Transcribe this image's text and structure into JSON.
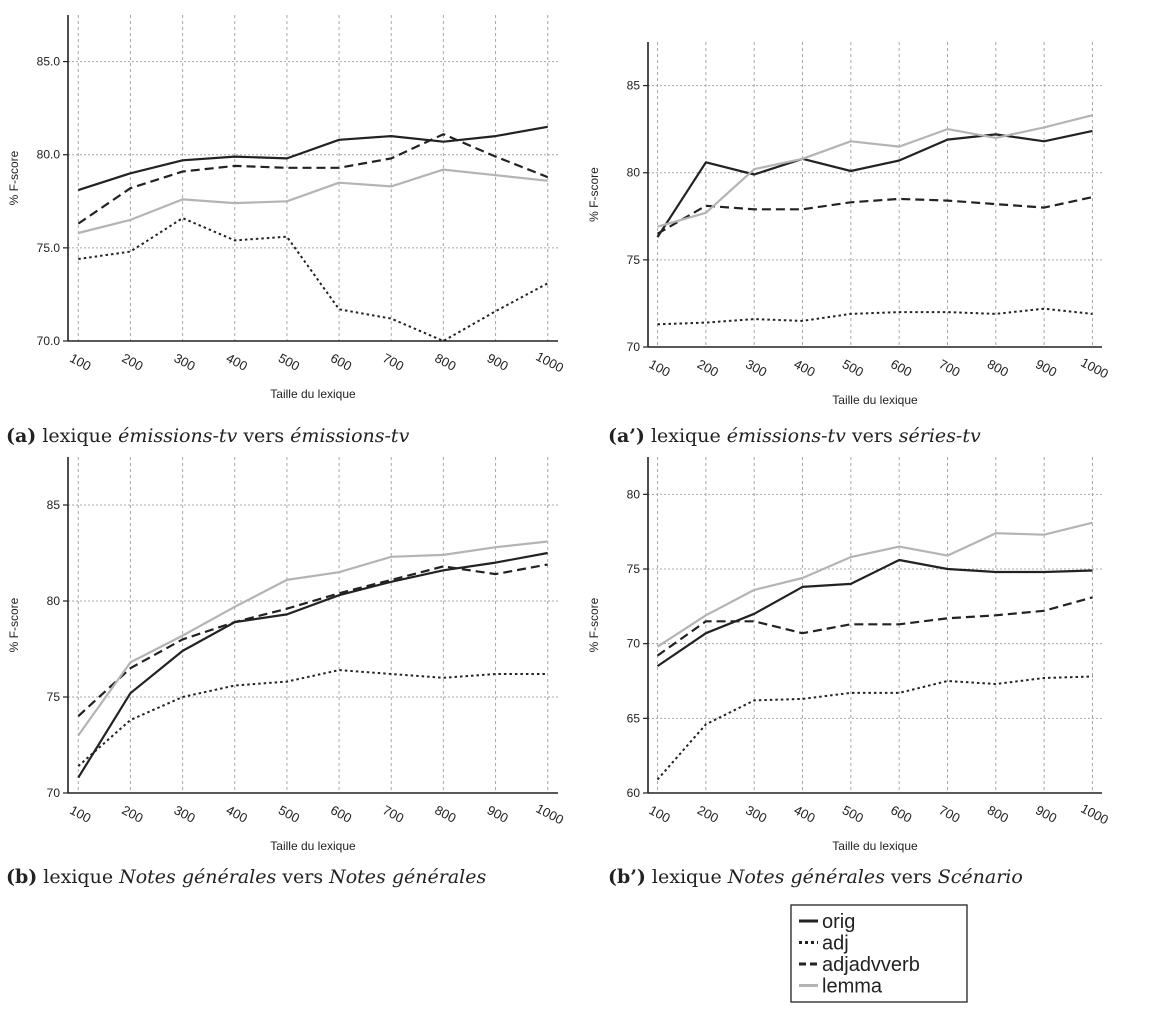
{
  "legend": {
    "entries": [
      {
        "label": "orig",
        "color": "#222222",
        "dash": "solid"
      },
      {
        "label": "adj",
        "color": "#222222",
        "dash": "dotted"
      },
      {
        "label": "adjadvverb",
        "color": "#222222",
        "dash": "dashed"
      },
      {
        "label": "lemma",
        "color": "#b4b4b4",
        "dash": "solid"
      }
    ]
  },
  "chart_data": [
    {
      "type": "line",
      "id": "a",
      "caption": {
        "label": "(a)",
        "parts": [
          {
            "t": " lexique ",
            "it": false
          },
          {
            "t": "émissions-tv",
            "it": true
          },
          {
            "t": " vers ",
            "it": false
          },
          {
            "t": "émissions-tv",
            "it": true
          }
        ]
      },
      "xlabel": "Taille du lexique",
      "ylabel": "% F-score",
      "categories": [
        "100",
        "200",
        "300",
        "400",
        "500",
        "600",
        "700",
        "800",
        "900",
        "1000"
      ],
      "yticks": [
        "70.0",
        "75.0",
        "80.0",
        "85.0"
      ],
      "ylim": [
        70,
        87.5
      ],
      "series": [
        {
          "name": "orig",
          "values": [
            78.1,
            79.0,
            79.7,
            79.9,
            79.8,
            80.8,
            81.0,
            80.7,
            81.0,
            81.5
          ]
        },
        {
          "name": "adj",
          "values": [
            74.4,
            74.8,
            76.6,
            75.4,
            75.6,
            71.7,
            71.2,
            70.0,
            71.6,
            73.1
          ]
        },
        {
          "name": "adjadvverb",
          "values": [
            76.3,
            78.2,
            79.1,
            79.4,
            79.3,
            79.3,
            79.8,
            81.1,
            79.9,
            78.8
          ]
        },
        {
          "name": "lemma",
          "values": [
            75.8,
            76.5,
            77.6,
            77.4,
            77.5,
            78.5,
            78.3,
            79.2,
            78.9,
            78.6
          ]
        }
      ]
    },
    {
      "type": "line",
      "id": "a2",
      "caption": {
        "label": "(a’)",
        "parts": [
          {
            "t": " lexique ",
            "it": false
          },
          {
            "t": "émissions-tv",
            "it": true
          },
          {
            "t": " vers ",
            "it": false
          },
          {
            "t": "séries-tv",
            "it": true
          }
        ]
      },
      "xlabel": "Taille du lexique",
      "ylabel": "% F-score",
      "categories": [
        "100",
        "200",
        "300",
        "400",
        "500",
        "600",
        "700",
        "800",
        "900",
        "1000"
      ],
      "yticks": [
        "70",
        "75",
        "80",
        "85"
      ],
      "ylim": [
        70,
        87.5
      ],
      "series": [
        {
          "name": "orig",
          "values": [
            76.3,
            80.6,
            79.9,
            80.8,
            80.1,
            80.7,
            81.9,
            82.2,
            81.8,
            82.4
          ]
        },
        {
          "name": "adj",
          "values": [
            71.3,
            71.4,
            71.6,
            71.5,
            71.9,
            72.0,
            72.0,
            71.9,
            72.2,
            71.9
          ]
        },
        {
          "name": "adjadvverb",
          "values": [
            76.5,
            78.1,
            77.9,
            77.9,
            78.3,
            78.5,
            78.4,
            78.2,
            78.0,
            78.6
          ]
        },
        {
          "name": "lemma",
          "values": [
            76.9,
            77.7,
            80.2,
            80.8,
            81.8,
            81.5,
            82.5,
            82.0,
            82.6,
            83.3
          ]
        }
      ]
    },
    {
      "type": "line",
      "id": "b",
      "caption": {
        "label": "(b)",
        "parts": [
          {
            "t": " lexique ",
            "it": false
          },
          {
            "t": "Notes générales",
            "it": true
          },
          {
            "t": " vers ",
            "it": false
          },
          {
            "t": "Notes générales",
            "it": true
          }
        ]
      },
      "xlabel": "Taille du lexique",
      "ylabel": "% F-score",
      "categories": [
        "100",
        "200",
        "300",
        "400",
        "500",
        "600",
        "700",
        "800",
        "900",
        "1000"
      ],
      "yticks": [
        "70",
        "75",
        "80",
        "85"
      ],
      "ylim": [
        70,
        87.5
      ],
      "series": [
        {
          "name": "orig",
          "values": [
            70.8,
            75.2,
            77.4,
            78.9,
            79.3,
            80.3,
            81.0,
            81.6,
            82.0,
            82.5
          ]
        },
        {
          "name": "adj",
          "values": [
            71.4,
            73.8,
            75.0,
            75.6,
            75.8,
            76.4,
            76.2,
            76.0,
            76.2,
            76.2
          ]
        },
        {
          "name": "adjadvverb",
          "values": [
            74.0,
            76.5,
            78.0,
            78.9,
            79.6,
            80.4,
            81.1,
            81.8,
            81.4,
            81.9
          ]
        },
        {
          "name": "lemma",
          "values": [
            73.0,
            76.8,
            78.2,
            79.7,
            81.1,
            81.5,
            82.3,
            82.4,
            82.8,
            83.1
          ]
        }
      ]
    },
    {
      "type": "line",
      "id": "b2",
      "caption": {
        "label": "(b’)",
        "parts": [
          {
            "t": " lexique ",
            "it": false
          },
          {
            "t": "Notes générales",
            "it": true
          },
          {
            "t": " vers ",
            "it": false
          },
          {
            "t": "Scénario",
            "it": true
          }
        ]
      },
      "xlabel": "Taille du lexique",
      "ylabel": "% F-score",
      "categories": [
        "100",
        "200",
        "300",
        "400",
        "500",
        "600",
        "700",
        "800",
        "900",
        "1000"
      ],
      "yticks": [
        "60",
        "65",
        "70",
        "75",
        "80"
      ],
      "ylim": [
        60,
        82.5
      ],
      "series": [
        {
          "name": "orig",
          "values": [
            68.5,
            70.7,
            72.0,
            73.8,
            74.0,
            75.6,
            75.0,
            74.8,
            74.8,
            74.9
          ]
        },
        {
          "name": "adj",
          "values": [
            60.9,
            64.6,
            66.2,
            66.3,
            66.7,
            66.7,
            67.5,
            67.3,
            67.7,
            67.8
          ]
        },
        {
          "name": "adjadvverb",
          "values": [
            69.2,
            71.5,
            71.5,
            70.7,
            71.3,
            71.3,
            71.7,
            71.9,
            72.2,
            73.1
          ]
        },
        {
          "name": "lemma",
          "values": [
            69.8,
            71.9,
            73.6,
            74.4,
            75.8,
            76.5,
            75.9,
            77.4,
            77.3,
            78.1
          ]
        }
      ]
    }
  ]
}
